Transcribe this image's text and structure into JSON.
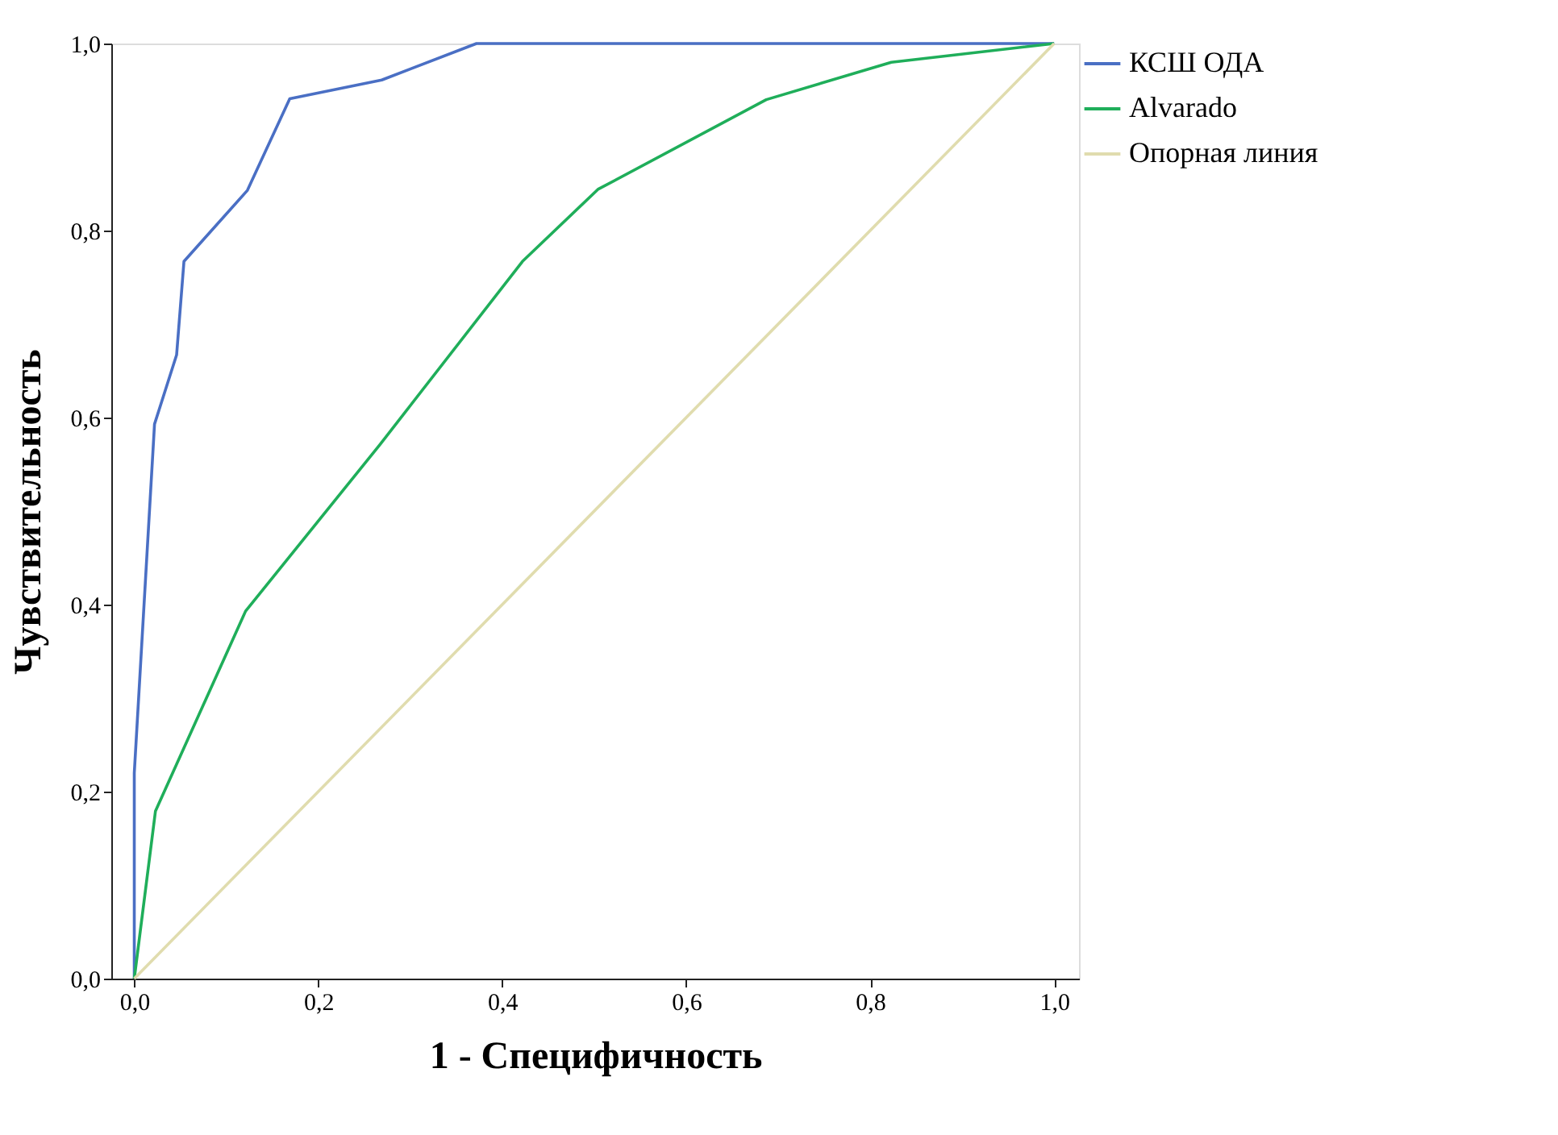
{
  "chart_data": {
    "type": "line",
    "xlabel": "1 - Специфичность",
    "ylabel": "Чувствительность",
    "xlim": [
      -0.025,
      1.027
    ],
    "ylim": [
      0,
      1
    ],
    "xticks": [
      {
        "value": 0,
        "label": "0,0"
      },
      {
        "value": 0.2,
        "label": "0,2"
      },
      {
        "value": 0.4,
        "label": "0,4"
      },
      {
        "value": 0.6,
        "label": "0,6"
      },
      {
        "value": 0.8,
        "label": "0,8"
      },
      {
        "value": 1,
        "label": "1,0"
      }
    ],
    "yticks": [
      {
        "value": 0,
        "label": "0,0"
      },
      {
        "value": 0.2,
        "label": "0,2"
      },
      {
        "value": 0.4,
        "label": "0,4"
      },
      {
        "value": 0.6,
        "label": "0,6"
      },
      {
        "value": 0.8,
        "label": "0,8"
      },
      {
        "value": 1,
        "label": "1,0"
      }
    ],
    "grid": false,
    "legend": "top right",
    "marker": "none",
    "line_style": "solid",
    "series": [
      {
        "name": "КСШ ОДА",
        "color": "#4a6fc4",
        "x": [
          0,
          0,
          0.022,
          0.046,
          0.054,
          0.123,
          0.169,
          0.269,
          0.372,
          1
        ],
        "values": [
          0,
          0.22,
          0.593,
          0.667,
          0.767,
          0.843,
          0.941,
          0.961,
          1,
          1
        ]
      },
      {
        "name": "Alvarado",
        "color": "#1fae5a",
        "x": [
          0,
          0.023,
          0.121,
          0.267,
          0.422,
          0.504,
          0.687,
          0.823,
          1
        ],
        "values": [
          0,
          0.179,
          0.393,
          0.571,
          0.767,
          0.844,
          0.94,
          0.98,
          1
        ]
      },
      {
        "name": "Опорная линия",
        "color": "#e0dcae",
        "x": [
          0,
          1
        ],
        "values": [
          0,
          1
        ]
      }
    ]
  }
}
